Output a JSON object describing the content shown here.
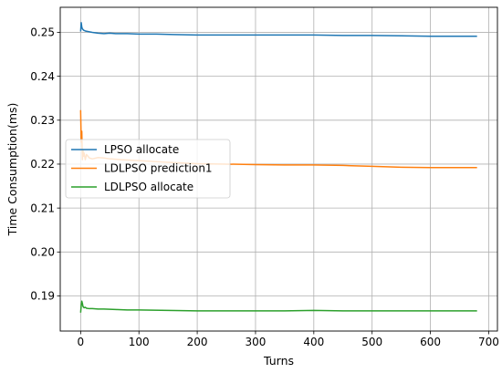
{
  "chart_data": {
    "type": "line",
    "title": "",
    "xlabel": "Turns",
    "ylabel": "Time Consumption(ms)",
    "xlim": [
      -35,
      715
    ],
    "ylim": [
      0.182,
      0.2557
    ],
    "xticks": [
      0,
      100,
      200,
      300,
      400,
      500,
      600,
      700
    ],
    "yticks": [
      0.19,
      0.2,
      0.21,
      0.22,
      0.23,
      0.24,
      0.25
    ],
    "ytick_labels": [
      "0.19",
      "0.20",
      "0.21",
      "0.22",
      "0.23",
      "0.24",
      "0.25"
    ],
    "grid": true,
    "legend_position": "center-left",
    "series": [
      {
        "name": "LPSO allocate",
        "color": "#1f77b4",
        "x": [
          0,
          1,
          2,
          3,
          5,
          8,
          12,
          20,
          30,
          40,
          50,
          60,
          70,
          80,
          100,
          130,
          160,
          200,
          250,
          300,
          350,
          400,
          450,
          500,
          550,
          600,
          650,
          680
        ],
        "y": [
          0.2502,
          0.2522,
          0.2512,
          0.2508,
          0.2505,
          0.2503,
          0.2502,
          0.25,
          0.2498,
          0.2497,
          0.2498,
          0.2497,
          0.2497,
          0.2497,
          0.2496,
          0.2496,
          0.2495,
          0.2494,
          0.2494,
          0.2494,
          0.2494,
          0.2494,
          0.2493,
          0.2493,
          0.2492,
          0.2491,
          0.2491,
          0.2491
        ]
      },
      {
        "name": "LDLPSO prediction1",
        "color": "#ff7f0e",
        "x": [
          0,
          1,
          2,
          3,
          4,
          5,
          6,
          8,
          10,
          15,
          20,
          30,
          40,
          50,
          70,
          100,
          150,
          200,
          250,
          300,
          350,
          400,
          450,
          500,
          550,
          600,
          650,
          680
        ],
        "y": [
          0.2323,
          0.225,
          0.2275,
          0.221,
          0.2232,
          0.2218,
          0.2225,
          0.221,
          0.2222,
          0.2214,
          0.2212,
          0.2215,
          0.2214,
          0.2212,
          0.221,
          0.2208,
          0.2204,
          0.2201,
          0.22,
          0.2199,
          0.2198,
          0.2198,
          0.2197,
          0.2195,
          0.2193,
          0.2192,
          0.2192,
          0.2192
        ]
      },
      {
        "name": "LDLPSO allocate",
        "color": "#2ca02c",
        "x": [
          0,
          1,
          2,
          3,
          4,
          6,
          8,
          10,
          15,
          20,
          30,
          40,
          60,
          80,
          100,
          150,
          200,
          250,
          300,
          350,
          400,
          450,
          500,
          550,
          600,
          650,
          680
        ],
        "y": [
          0.1862,
          0.1878,
          0.1888,
          0.1883,
          0.1876,
          0.1873,
          0.1874,
          0.1872,
          0.1871,
          0.1871,
          0.187,
          0.187,
          0.1869,
          0.1868,
          0.1868,
          0.1867,
          0.1866,
          0.1866,
          0.1866,
          0.1866,
          0.1867,
          0.1866,
          0.1866,
          0.1866,
          0.1866,
          0.1866,
          0.1866
        ]
      }
    ]
  }
}
